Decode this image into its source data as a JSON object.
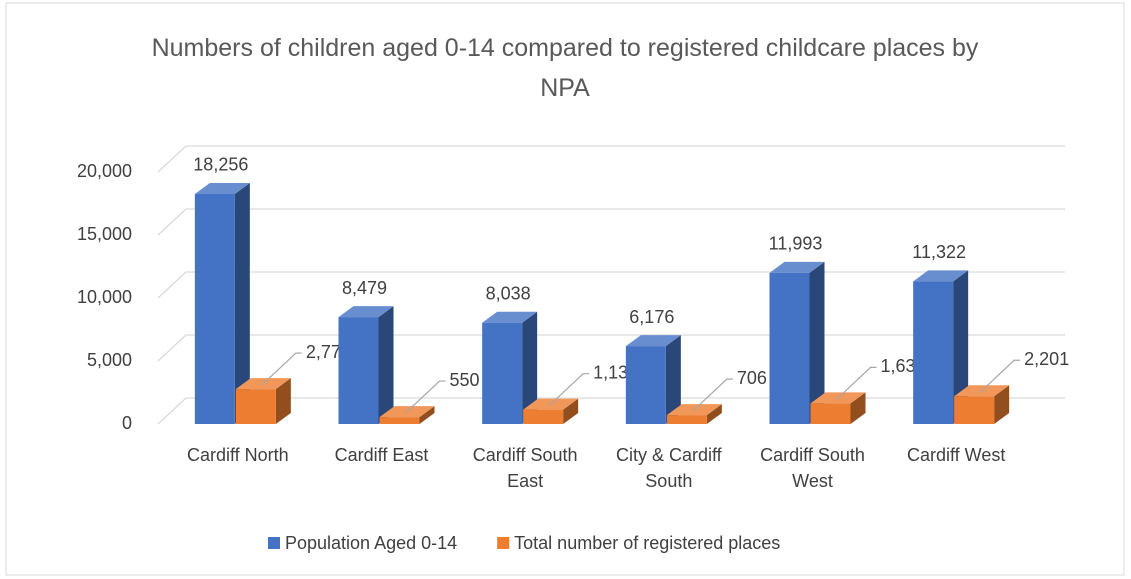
{
  "chart_data": {
    "type": "bar3d",
    "title": "Numbers of children aged 0-14 compared to registered childcare places by NPA",
    "categories": [
      "Cardiff North",
      "Cardiff East",
      "Cardiff South East",
      "City & Cardiff South",
      "Cardiff South West",
      "Cardiff West"
    ],
    "series": [
      {
        "name": "Population Aged 0-14",
        "color": "#4472c4",
        "values": [
          18256,
          8479,
          8038,
          6176,
          11993,
          11322
        ],
        "value_labels": [
          "18,256",
          "8,479",
          "8,038",
          "6,176",
          "11,993",
          "11,322"
        ]
      },
      {
        "name": "Total number of registered places",
        "color": "#ed7d31",
        "values": [
          2772,
          550,
          1137,
          706,
          1636,
          2201
        ],
        "value_labels": [
          "2,772",
          "550",
          "1,137",
          "706",
          "1,636",
          "2,201"
        ]
      }
    ],
    "ylim": [
      0,
      20000
    ],
    "yticks": [
      0,
      {
        "value": 5000,
        "label": "5,000"
      },
      {
        "value": 10000,
        "label": "10,000"
      },
      {
        "value": 15000,
        "label": "15,000"
      },
      {
        "value": 20000,
        "label": "20,000"
      }
    ],
    "grid": true,
    "legend": "bottom"
  }
}
